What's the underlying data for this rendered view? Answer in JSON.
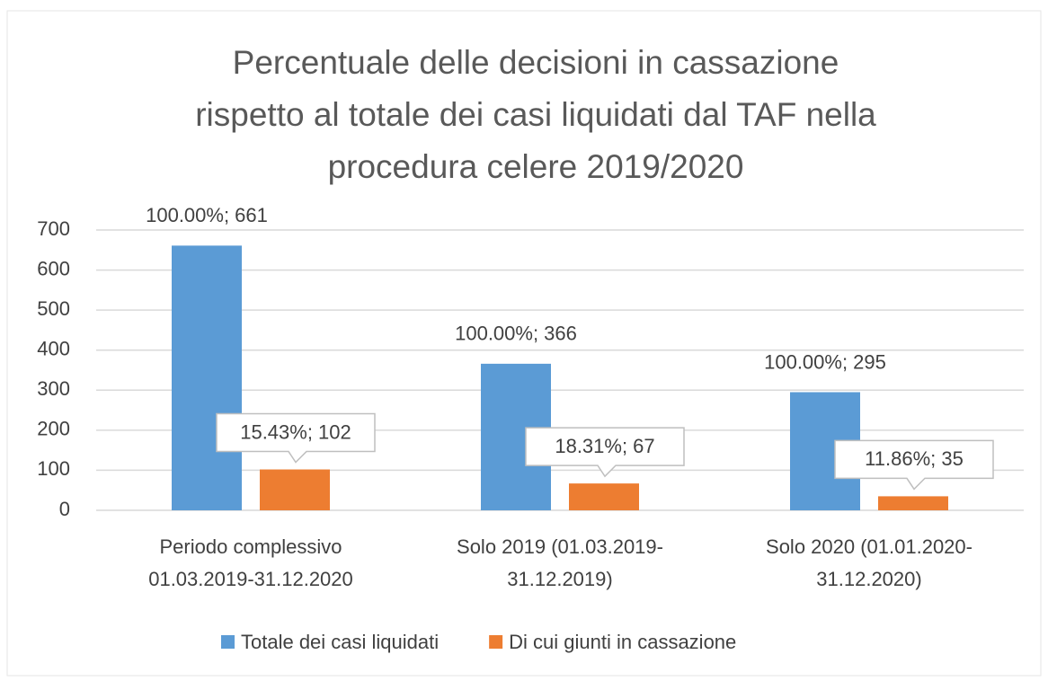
{
  "chart_data": {
    "type": "bar",
    "title": "Percentuale delle decisioni in cassazione\nrispetto al totale dei casi liquidati dal TAF nella\nprocedura celere 2019/2020",
    "categories": [
      "Periodo complessivo\n01.03.2019-31.12.2020",
      "Solo 2019 (01.03.2019-\n31.12.2019)",
      "Solo 2020 (01.01.2020-\n31.12.2020)"
    ],
    "series": [
      {
        "name": "Totale dei casi liquidati",
        "color": "#5b9bd5",
        "values": [
          661,
          366,
          295
        ],
        "value_labels": [
          "100.00%; 661",
          "100.00%; 366",
          "100.00%; 295"
        ]
      },
      {
        "name": "Di cui giunti in cassazione",
        "color": "#ed7d31",
        "values": [
          102,
          67,
          35
        ],
        "value_labels": [
          "15.43%; 102",
          "18.31%; 67",
          "11.86%; 35"
        ]
      }
    ],
    "ylim": [
      0,
      700
    ],
    "yticks": [
      0,
      100,
      200,
      300,
      400,
      500,
      600,
      700
    ],
    "grid": true,
    "legend": "bottom"
  }
}
